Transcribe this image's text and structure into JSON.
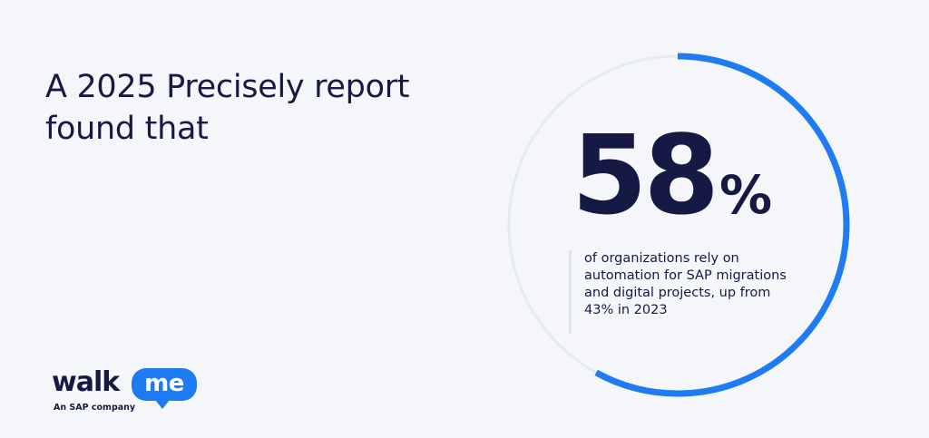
{
  "headline": {
    "lines": [
      "A 2025 Precisely report",
      "found that"
    ]
  },
  "stat": {
    "number": "58",
    "unit": "%",
    "progress_fraction": 0.58,
    "description_lines": [
      "of organizations rely on",
      "automation for SAP migrations",
      "and digital projects, up from",
      "43% in 2023"
    ]
  },
  "logo": {
    "walk": "walk",
    "me": "me",
    "tagline": "An SAP company"
  },
  "colors": {
    "background": "#f4f6f9",
    "text_dark": "#151a45",
    "accent_blue": "#1f7bf2",
    "ring_track": "#e6eaf2"
  }
}
